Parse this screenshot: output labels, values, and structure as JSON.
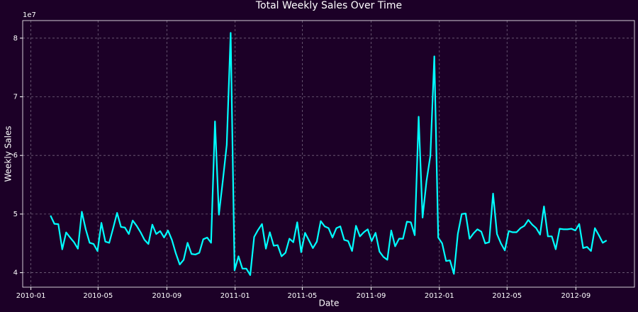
{
  "chart_data": {
    "type": "line",
    "title": "Total Weekly Sales Over Time",
    "x_label": "Date",
    "y_label": "Weekly Sales",
    "y_offset_label": "1e7",
    "grid": true,
    "background": "#1c0027",
    "xlim": [
      14595.3,
      15688.7
    ],
    "xticks": [
      {
        "value": 14610,
        "label": "2010-01"
      },
      {
        "value": 14730,
        "label": "2010-05"
      },
      {
        "value": 14853,
        "label": "2010-09"
      },
      {
        "value": 14975,
        "label": "2011-01"
      },
      {
        "value": 15095,
        "label": "2011-05"
      },
      {
        "value": 15218,
        "label": "2011-09"
      },
      {
        "value": 15340,
        "label": "2012-01"
      },
      {
        "value": 15461,
        "label": "2012-05"
      },
      {
        "value": 15584,
        "label": "2012-09"
      }
    ],
    "ylim": [
      3.753,
      8.3
    ],
    "yticks": [
      4,
      5,
      6,
      7,
      8
    ],
    "x": [
      14645,
      14652,
      14659,
      14666,
      14673,
      14680,
      14687,
      14694,
      14701,
      14708,
      14715,
      14722,
      14729,
      14736,
      14743,
      14750,
      14757,
      14764,
      14771,
      14778,
      14785,
      14792,
      14799,
      14806,
      14813,
      14820,
      14827,
      14834,
      14841,
      14848,
      14855,
      14862,
      14869,
      14876,
      14883,
      14890,
      14897,
      14904,
      14911,
      14918,
      14925,
      14932,
      14939,
      14946,
      14953,
      14960,
      14967,
      14974,
      14981,
      14988,
      14995,
      15002,
      15009,
      15016,
      15023,
      15030,
      15037,
      15044,
      15051,
      15058,
      15065,
      15072,
      15079,
      15086,
      15093,
      15100,
      15107,
      15114,
      15121,
      15128,
      15135,
      15142,
      15149,
      15156,
      15163,
      15170,
      15177,
      15184,
      15191,
      15198,
      15205,
      15212,
      15219,
      15226,
      15233,
      15240,
      15247,
      15254,
      15261,
      15268,
      15275,
      15282,
      15289,
      15296,
      15303,
      15310,
      15317,
      15324,
      15331,
      15338,
      15345,
      15352,
      15359,
      15366,
      15373,
      15380,
      15387,
      15394,
      15401,
      15408,
      15415,
      15422,
      15429,
      15436,
      15443,
      15450,
      15457,
      15464,
      15471,
      15478,
      15485,
      15492,
      15499,
      15506,
      15513,
      15520,
      15527,
      15534,
      15541,
      15548,
      15555,
      15562,
      15569,
      15576,
      15583,
      15590,
      15597,
      15604,
      15611,
      15618,
      15625,
      15632,
      15639
    ],
    "series": [
      {
        "name": "Weekly Sales",
        "color": "#00ffff",
        "values": [
          4.975,
          4.834,
          4.828,
          4.399,
          4.687,
          4.6,
          4.52,
          4.41,
          5.04,
          4.74,
          4.51,
          4.49,
          4.37,
          4.85,
          4.53,
          4.51,
          4.76,
          5.02,
          4.78,
          4.77,
          4.66,
          4.89,
          4.8,
          4.69,
          4.56,
          4.49,
          4.82,
          4.66,
          4.71,
          4.6,
          4.72,
          4.56,
          4.33,
          4.14,
          4.22,
          4.51,
          4.32,
          4.31,
          4.34,
          4.57,
          4.6,
          4.51,
          6.58,
          4.99,
          5.57,
          6.18,
          8.09,
          4.04,
          4.28,
          4.07,
          4.07,
          3.96,
          4.61,
          4.73,
          4.83,
          4.41,
          4.69,
          4.46,
          4.47,
          4.28,
          4.34,
          4.58,
          4.52,
          4.86,
          4.35,
          4.68,
          4.55,
          4.42,
          4.53,
          4.88,
          4.79,
          4.76,
          4.6,
          4.76,
          4.79,
          4.56,
          4.54,
          4.37,
          4.8,
          4.62,
          4.69,
          4.74,
          4.54,
          4.68,
          4.36,
          4.27,
          4.22,
          4.72,
          4.45,
          4.58,
          4.58,
          4.87,
          4.86,
          4.64,
          6.66,
          4.94,
          5.56,
          6.0,
          7.69,
          4.6,
          4.5,
          4.2,
          4.21,
          3.98,
          4.66,
          5.0,
          5.01,
          4.58,
          4.67,
          4.74,
          4.7,
          4.5,
          4.52,
          5.35,
          4.66,
          4.5,
          4.38,
          4.71,
          4.69,
          4.69,
          4.76,
          4.8,
          4.9,
          4.82,
          4.76,
          4.65,
          5.13,
          4.62,
          4.62,
          4.4,
          4.75,
          4.74,
          4.74,
          4.75,
          4.72,
          4.83,
          4.42,
          4.44,
          4.37,
          4.76,
          4.64,
          4.51,
          4.55
        ]
      }
    ]
  }
}
